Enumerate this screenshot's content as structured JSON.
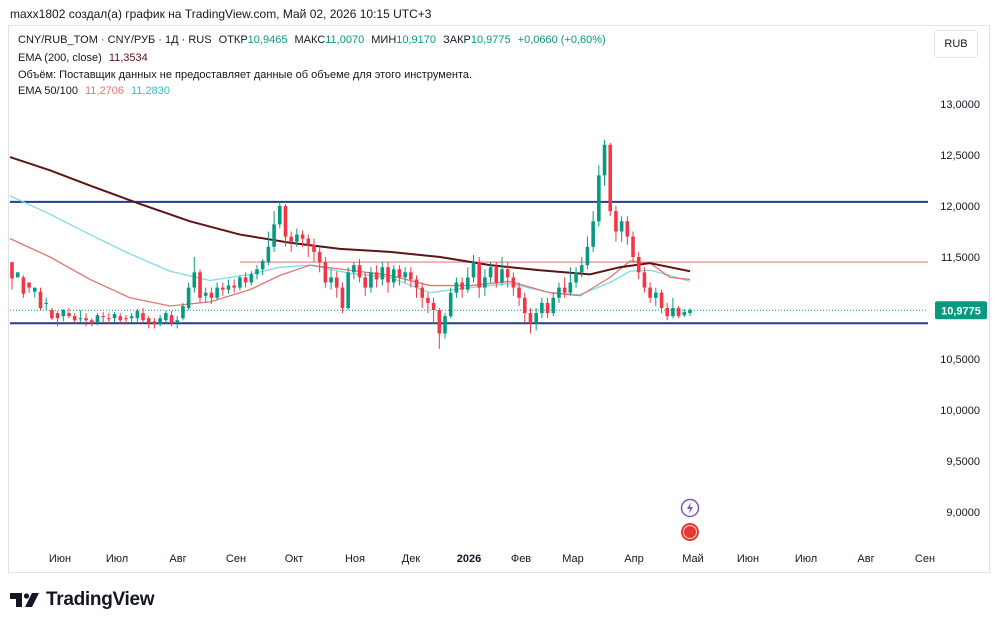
{
  "header": {
    "credit": "maxx1802 создал(а) график на TradingView.com, Май 02, 2026 10:15 UTC+3"
  },
  "legend": {
    "symbol": "CNY/RUB_TOM · CNY/РУБ · 1Д · RUS",
    "open_label": "ОТКР",
    "open": "10,9465",
    "high_label": "МАКС",
    "high": "11,0070",
    "low_label": "МИН",
    "low": "10,9170",
    "close_label": "ЗАКР",
    "close": "10,9775",
    "change": "+0,0660 (+0,60%)",
    "ema200_label": "EMA (200, close)",
    "ema200_value": "11,3534",
    "volume_note": "Объём: Поставщик данных не предоставляет данные об объеме для этого инструмента.",
    "ema50_100_label": "EMA 50/100",
    "ema50_value": "11,2706",
    "ema100_value": "11,2830"
  },
  "currency_button": "RUB",
  "price_label": "10,9775",
  "logo_text": "TradingView",
  "colors": {
    "up": "#089981",
    "down": "#f23645",
    "ema200": "#5d1414",
    "ema50": "#e57373",
    "ema100": "#7fdbe6",
    "support_resistance": "#1e3f8e",
    "range_line": "#e8a0a0",
    "accent": "#7e57c2"
  },
  "chart_data": {
    "type": "candlestick",
    "y_axis": {
      "ticks": [
        "13,0000",
        "12,5000",
        "12,0000",
        "11,5000",
        "11,0000",
        "10,5000",
        "10,0000",
        "9,5000",
        "9,0000"
      ],
      "tick_values": [
        13.0,
        12.5,
        12.0,
        11.5,
        11.0,
        10.5,
        10.0,
        9.5,
        9.0
      ]
    },
    "x_axis": {
      "labels": [
        "Июн",
        "Июл",
        "Авг",
        "Сен",
        "Окт",
        "Ноя",
        "Дек",
        "2026",
        "Фев",
        "Мар",
        "Апр",
        "Май",
        "Июн",
        "Июл",
        "Авг",
        "Сен"
      ]
    },
    "horizontal_levels": [
      12.04,
      10.85
    ],
    "range_level": 11.45,
    "last_price": 10.9775,
    "ema200": [
      [
        0,
        12.48
      ],
      [
        40,
        12.35
      ],
      [
        80,
        12.2
      ],
      [
        130,
        12.02
      ],
      [
        180,
        11.85
      ],
      [
        230,
        11.72
      ],
      [
        280,
        11.64
      ],
      [
        330,
        11.58
      ],
      [
        380,
        11.55
      ],
      [
        430,
        11.5
      ],
      [
        480,
        11.42
      ],
      [
        530,
        11.37
      ],
      [
        580,
        11.33
      ],
      [
        610,
        11.4
      ],
      [
        640,
        11.44
      ],
      [
        660,
        11.4
      ],
      [
        680,
        11.36
      ]
    ],
    "ema50": [
      [
        0,
        11.68
      ],
      [
        40,
        11.5
      ],
      [
        80,
        11.28
      ],
      [
        120,
        11.1
      ],
      [
        160,
        11.02
      ],
      [
        200,
        11.06
      ],
      [
        240,
        11.18
      ],
      [
        270,
        11.32
      ],
      [
        300,
        11.42
      ],
      [
        340,
        11.37
      ],
      [
        380,
        11.32
      ],
      [
        420,
        11.22
      ],
      [
        460,
        11.22
      ],
      [
        500,
        11.26
      ],
      [
        540,
        11.15
      ],
      [
        570,
        11.12
      ],
      [
        600,
        11.3
      ],
      [
        620,
        11.46
      ],
      [
        640,
        11.44
      ],
      [
        660,
        11.3
      ],
      [
        680,
        11.28
      ]
    ],
    "ema100": [
      [
        0,
        12.1
      ],
      [
        40,
        11.92
      ],
      [
        80,
        11.72
      ],
      [
        120,
        11.53
      ],
      [
        160,
        11.36
      ],
      [
        200,
        11.27
      ],
      [
        240,
        11.33
      ],
      [
        270,
        11.4
      ],
      [
        300,
        11.42
      ],
      [
        340,
        11.34
      ],
      [
        380,
        11.3
      ],
      [
        420,
        11.15
      ],
      [
        460,
        11.2
      ],
      [
        500,
        11.24
      ],
      [
        540,
        11.15
      ],
      [
        570,
        11.13
      ],
      [
        600,
        11.25
      ],
      [
        620,
        11.36
      ],
      [
        640,
        11.37
      ],
      [
        660,
        11.32
      ],
      [
        680,
        11.26
      ]
    ],
    "candles": [
      [
        11.45,
        11.29,
        11.3,
        11.18
      ],
      [
        11.3,
        11.35,
        11.22,
        11.22
      ],
      [
        11.3,
        11.14,
        11.32,
        11.1
      ],
      [
        11.25,
        11.2,
        11.25,
        11.15
      ],
      [
        11.16,
        11.2,
        11.17,
        11.1
      ],
      [
        11.16,
        11.0,
        11.2,
        10.98
      ],
      [
        11.05,
        11.05,
        11.1,
        10.98
      ],
      [
        10.98,
        10.9,
        11.0,
        10.88
      ],
      [
        10.95,
        10.9,
        10.97,
        10.82
      ],
      [
        10.92,
        10.98,
        10.99,
        10.87
      ],
      [
        10.95,
        10.92,
        11.0,
        10.9
      ],
      [
        10.92,
        10.88,
        10.95,
        10.85
      ],
      [
        10.9,
        10.9,
        10.98,
        10.85
      ],
      [
        10.9,
        10.88,
        10.95,
        10.82
      ],
      [
        10.88,
        10.85,
        10.9,
        10.82
      ],
      [
        10.86,
        10.93,
        10.95,
        10.83
      ],
      [
        10.92,
        10.91,
        10.96,
        10.86
      ],
      [
        10.9,
        10.89,
        10.95,
        10.84
      ],
      [
        10.9,
        10.94,
        10.96,
        10.86
      ],
      [
        10.92,
        10.88,
        10.95,
        10.85
      ],
      [
        10.9,
        10.89,
        10.93,
        10.84
      ],
      [
        10.9,
        10.92,
        10.95,
        10.86
      ],
      [
        10.9,
        10.97,
        10.99,
        10.86
      ],
      [
        10.95,
        10.88,
        11.0,
        10.85
      ],
      [
        10.9,
        10.86,
        10.92,
        10.8
      ],
      [
        10.87,
        10.84,
        10.9,
        10.8
      ],
      [
        10.84,
        10.9,
        10.93,
        10.82
      ],
      [
        10.88,
        10.95,
        10.97,
        10.86
      ],
      [
        10.93,
        10.85,
        10.97,
        10.82
      ],
      [
        10.86,
        10.88,
        10.92,
        10.8
      ],
      [
        10.9,
        11.02,
        11.05,
        10.88
      ],
      [
        11.0,
        11.2,
        11.25,
        10.98
      ],
      [
        11.2,
        11.35,
        11.5,
        11.15
      ],
      [
        11.35,
        11.1,
        11.38,
        11.05
      ],
      [
        11.12,
        11.15,
        11.2,
        11.05
      ],
      [
        11.15,
        11.1,
        11.2,
        11.04
      ],
      [
        11.1,
        11.2,
        11.25,
        11.08
      ],
      [
        11.2,
        11.18,
        11.25,
        11.12
      ],
      [
        11.18,
        11.22,
        11.28,
        11.14
      ],
      [
        11.22,
        11.2,
        11.28,
        11.15
      ],
      [
        11.2,
        11.3,
        11.32,
        11.17
      ],
      [
        11.3,
        11.25,
        11.35,
        11.2
      ],
      [
        11.25,
        11.33,
        11.36,
        11.22
      ],
      [
        11.33,
        11.38,
        11.42,
        11.28
      ],
      [
        11.38,
        11.46,
        11.48,
        11.32
      ],
      [
        11.45,
        11.6,
        11.75,
        11.42
      ],
      [
        11.6,
        11.82,
        11.95,
        11.55
      ],
      [
        11.82,
        12.0,
        12.04,
        11.78
      ],
      [
        12.0,
        11.7,
        12.02,
        11.6
      ],
      [
        11.7,
        11.65,
        11.75,
        11.55
      ],
      [
        11.65,
        11.72,
        11.78,
        11.6
      ],
      [
        11.72,
        11.68,
        11.76,
        11.6
      ],
      [
        11.68,
        11.62,
        11.72,
        11.5
      ],
      [
        11.62,
        11.55,
        11.68,
        11.45
      ],
      [
        11.55,
        11.45,
        11.6,
        11.35
      ],
      [
        11.45,
        11.25,
        11.5,
        11.2
      ],
      [
        11.25,
        11.3,
        11.38,
        11.18
      ],
      [
        11.3,
        11.2,
        11.36,
        11.1
      ],
      [
        11.2,
        11.0,
        11.25,
        10.95
      ],
      [
        11.0,
        11.35,
        11.4,
        10.98
      ],
      [
        11.35,
        11.42,
        11.45,
        11.28
      ],
      [
        11.42,
        11.3,
        11.48,
        11.25
      ],
      [
        11.3,
        11.2,
        11.35,
        11.12
      ],
      [
        11.2,
        11.35,
        11.4,
        11.15
      ],
      [
        11.35,
        11.28,
        11.42,
        11.2
      ],
      [
        11.28,
        11.4,
        11.45,
        11.22
      ],
      [
        11.4,
        11.25,
        11.45,
        11.15
      ],
      [
        11.25,
        11.38,
        11.42,
        11.2
      ],
      [
        11.38,
        11.3,
        11.42,
        11.22
      ],
      [
        11.3,
        11.35,
        11.4,
        11.25
      ],
      [
        11.35,
        11.28,
        11.4,
        11.2
      ],
      [
        11.28,
        11.2,
        11.32,
        11.1
      ],
      [
        11.2,
        11.1,
        11.25,
        11.0
      ],
      [
        11.1,
        11.05,
        11.15,
        10.95
      ],
      [
        11.05,
        10.98,
        11.1,
        10.85
      ],
      [
        10.98,
        10.75,
        11.0,
        10.6
      ],
      [
        10.75,
        10.92,
        10.95,
        10.7
      ],
      [
        10.92,
        11.15,
        11.2,
        10.9
      ],
      [
        11.15,
        11.25,
        11.3,
        11.1
      ],
      [
        11.25,
        11.18,
        11.3,
        11.1
      ],
      [
        11.18,
        11.3,
        11.4,
        11.15
      ],
      [
        11.3,
        11.45,
        11.52,
        11.25
      ],
      [
        11.45,
        11.2,
        11.5,
        11.1
      ],
      [
        11.2,
        11.3,
        11.38,
        11.12
      ],
      [
        11.3,
        11.4,
        11.45,
        11.25
      ],
      [
        11.4,
        11.25,
        11.45,
        11.2
      ],
      [
        11.25,
        11.38,
        11.5,
        11.22
      ],
      [
        11.38,
        11.3,
        11.45,
        11.2
      ],
      [
        11.3,
        11.2,
        11.35,
        11.12
      ],
      [
        11.2,
        11.1,
        11.25,
        11.02
      ],
      [
        11.1,
        10.95,
        11.15,
        10.85
      ],
      [
        10.95,
        10.85,
        11.0,
        10.75
      ],
      [
        10.85,
        10.95,
        11.0,
        10.78
      ],
      [
        10.95,
        11.05,
        11.1,
        10.9
      ],
      [
        11.05,
        10.95,
        11.1,
        10.9
      ],
      [
        10.95,
        11.1,
        11.15,
        10.92
      ],
      [
        11.1,
        11.2,
        11.25,
        11.05
      ],
      [
        11.2,
        11.15,
        11.3,
        11.1
      ],
      [
        11.15,
        11.25,
        11.4,
        11.12
      ],
      [
        11.25,
        11.35,
        11.4,
        11.2
      ],
      [
        11.35,
        11.42,
        11.5,
        11.3
      ],
      [
        11.42,
        11.6,
        11.7,
        11.38
      ],
      [
        11.6,
        11.85,
        11.95,
        11.55
      ],
      [
        11.85,
        12.3,
        12.4,
        11.8
      ],
      [
        12.3,
        12.6,
        12.65,
        12.2
      ],
      [
        12.6,
        11.95,
        12.62,
        11.9
      ],
      [
        11.95,
        11.75,
        12.0,
        11.65
      ],
      [
        11.75,
        11.85,
        11.9,
        11.65
      ],
      [
        11.85,
        11.7,
        11.9,
        11.62
      ],
      [
        11.7,
        11.5,
        11.75,
        11.45
      ],
      [
        11.5,
        11.35,
        11.55,
        11.28
      ],
      [
        11.35,
        11.2,
        11.4,
        11.15
      ],
      [
        11.2,
        11.1,
        11.25,
        11.05
      ],
      [
        11.1,
        11.15,
        11.2,
        11.02
      ],
      [
        11.15,
        11.0,
        11.18,
        10.95
      ],
      [
        11.0,
        10.92,
        11.05,
        10.88
      ],
      [
        10.92,
        11.0,
        11.1,
        10.9
      ],
      [
        11.0,
        10.92,
        11.02,
        10.9
      ],
      [
        10.93,
        10.96,
        10.99,
        10.91
      ],
      [
        10.95,
        10.98,
        11.0,
        10.92
      ]
    ]
  }
}
